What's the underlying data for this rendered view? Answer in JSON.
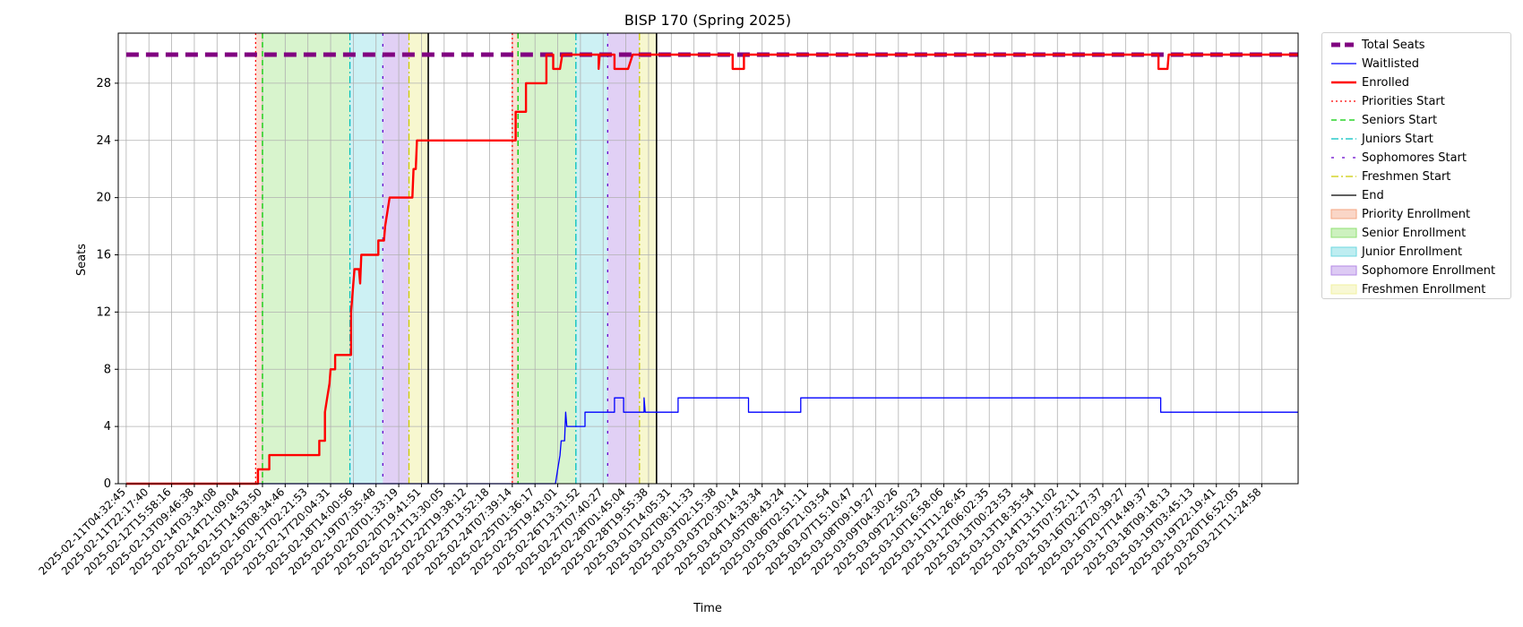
{
  "chart_data": {
    "type": "line",
    "title": "BISP 170 (Spring 2025)",
    "xlabel": "Time",
    "ylabel": "Seats",
    "ylim": [
      0,
      31.5
    ],
    "yticks": [
      0,
      4,
      8,
      12,
      16,
      20,
      24,
      28
    ],
    "grid": true,
    "legend_position": "outside-right",
    "xticks": [
      "2025-02-11T04:32:45",
      "2025-02-11T22:17:40",
      "2025-02-12T15:58:16",
      "2025-02-13T09:46:38",
      "2025-02-14T03:34:08",
      "2025-02-14T21:09:04",
      "2025-02-15T14:53:50",
      "2025-02-16T08:34:46",
      "2025-02-17T02:21:53",
      "2025-02-17T20:04:31",
      "2025-02-18T14:00:56",
      "2025-02-19T07:35:48",
      "2025-02-20T01:33:19",
      "2025-02-20T19:41:51",
      "2025-02-21T13:30:05",
      "2025-02-22T19:38:12",
      "2025-02-23T13:52:18",
      "2025-02-24T07:39:14",
      "2025-02-25T01:36:17",
      "2025-02-25T19:43:01",
      "2025-02-26T13:31:52",
      "2025-02-27T07:40:27",
      "2025-02-28T01:45:04",
      "2025-02-28T19:55:38",
      "2025-03-01T14:05:31",
      "2025-03-02T08:11:33",
      "2025-03-03T02:15:38",
      "2025-03-03T20:30:14",
      "2025-03-04T14:33:34",
      "2025-03-05T08:43:24",
      "2025-03-06T02:51:11",
      "2025-03-06T21:03:54",
      "2025-03-07T15:10:47",
      "2025-03-08T09:19:27",
      "2025-03-09T04:30:26",
      "2025-03-09T22:50:23",
      "2025-03-10T16:58:06",
      "2025-03-11T11:26:45",
      "2025-03-12T06:02:35",
      "2025-03-13T00:23:53",
      "2025-03-13T18:35:54",
      "2025-03-14T13:11:02",
      "2025-03-15T07:52:11",
      "2025-03-16T02:27:37",
      "2025-03-16T20:39:27",
      "2025-03-17T14:49:37",
      "2025-03-18T09:18:13",
      "2025-03-19T03:45:13",
      "2025-03-19T22:19:41",
      "2025-03-20T16:52:05",
      "2025-03-21T11:24:58"
    ],
    "x_range_tick_index": [
      0,
      51.6
    ],
    "total_seats": 30,
    "series": [
      {
        "name": "Total Seats",
        "color": "#800080",
        "points": [
          [
            0,
            30
          ],
          [
            51.6,
            30
          ]
        ]
      },
      {
        "name": "Waitlisted",
        "color": "#0000ff",
        "points": [
          [
            0,
            0
          ],
          [
            13.65,
            0
          ],
          [
            13.65,
            0
          ],
          [
            18.9,
            0
          ],
          [
            18.9,
            0
          ],
          [
            19.0,
            1
          ],
          [
            19.1,
            2
          ],
          [
            19.15,
            3
          ],
          [
            19.3,
            3
          ],
          [
            19.35,
            5
          ],
          [
            19.4,
            4
          ],
          [
            20.2,
            4
          ],
          [
            20.2,
            5
          ],
          [
            21.5,
            5
          ],
          [
            21.5,
            6
          ],
          [
            21.9,
            6
          ],
          [
            21.9,
            5
          ],
          [
            22.8,
            5
          ],
          [
            22.8,
            6
          ],
          [
            22.85,
            5
          ],
          [
            24.3,
            5
          ],
          [
            24.3,
            6
          ],
          [
            27.4,
            6
          ],
          [
            27.4,
            5
          ],
          [
            29.7,
            5
          ],
          [
            29.7,
            6
          ],
          [
            45.55,
            6
          ],
          [
            45.55,
            5
          ],
          [
            51.6,
            5
          ]
        ]
      },
      {
        "name": "Enrolled",
        "color": "#ff0000",
        "points": [
          [
            0,
            0
          ],
          [
            5.8,
            0
          ],
          [
            5.8,
            1
          ],
          [
            6.3,
            1
          ],
          [
            6.3,
            2
          ],
          [
            8.5,
            2
          ],
          [
            8.5,
            3
          ],
          [
            8.75,
            3
          ],
          [
            8.75,
            5
          ],
          [
            8.85,
            6
          ],
          [
            8.95,
            7
          ],
          [
            9.0,
            8
          ],
          [
            9.2,
            8
          ],
          [
            9.2,
            9
          ],
          [
            9.9,
            9
          ],
          [
            9.9,
            12
          ],
          [
            10.0,
            14
          ],
          [
            10.05,
            15
          ],
          [
            10.25,
            15
          ],
          [
            10.3,
            14
          ],
          [
            10.35,
            16
          ],
          [
            11.1,
            16
          ],
          [
            11.1,
            17
          ],
          [
            11.35,
            17
          ],
          [
            11.4,
            18
          ],
          [
            11.5,
            19
          ],
          [
            11.6,
            20
          ],
          [
            12.6,
            20
          ],
          [
            12.65,
            22
          ],
          [
            12.75,
            22
          ],
          [
            12.8,
            24
          ],
          [
            17.15,
            24
          ],
          [
            17.15,
            26
          ],
          [
            17.6,
            26
          ],
          [
            17.6,
            28
          ],
          [
            18.5,
            28
          ],
          [
            18.5,
            30
          ],
          [
            18.8,
            30
          ],
          [
            18.8,
            29
          ],
          [
            19.1,
            29
          ],
          [
            19.2,
            30
          ],
          [
            20.8,
            30
          ],
          [
            20.8,
            29
          ],
          [
            20.85,
            30
          ],
          [
            21.5,
            30
          ],
          [
            21.5,
            29
          ],
          [
            22.1,
            29
          ],
          [
            22.3,
            30
          ],
          [
            26.7,
            30
          ],
          [
            26.7,
            29
          ],
          [
            27.2,
            29
          ],
          [
            27.2,
            30
          ],
          [
            45.45,
            30
          ],
          [
            45.45,
            29
          ],
          [
            45.85,
            29
          ],
          [
            45.9,
            30
          ],
          [
            51.6,
            30
          ]
        ]
      }
    ],
    "markers": [
      {
        "name": "Priorities Start",
        "color": "#ff0000",
        "style": "dotted",
        "x": [
          5.7,
          17.0
        ]
      },
      {
        "name": "Seniors Start",
        "color": "#00cc00",
        "style": "dashed",
        "x": [
          6.0,
          17.25
        ]
      },
      {
        "name": "Juniors Start",
        "color": "#00bfbf",
        "style": "dashdot",
        "x": [
          9.85,
          19.8
        ]
      },
      {
        "name": "Sophomores Start",
        "color": "#6600cc",
        "style": "loosedash",
        "x": [
          11.3,
          21.2
        ]
      },
      {
        "name": "Freshmen Start",
        "color": "#cccc00",
        "style": "dashdot",
        "x": [
          12.45,
          22.6
        ]
      },
      {
        "name": "End",
        "color": "#000000",
        "style": "solid",
        "x": [
          13.3,
          23.35
        ]
      }
    ],
    "regions": [
      {
        "name": "Priority Enrollment",
        "color": "#f4a582",
        "alpha": 0.35,
        "ranges": [
          [
            5.7,
            6.0
          ],
          [
            17.0,
            17.25
          ]
        ]
      },
      {
        "name": "Senior Enrollment",
        "color": "#90e070",
        "alpha": 0.35,
        "ranges": [
          [
            6.0,
            9.85
          ],
          [
            17.25,
            19.8
          ]
        ]
      },
      {
        "name": "Junior Enrollment",
        "color": "#6fd8e0",
        "alpha": 0.35,
        "ranges": [
          [
            9.85,
            11.3
          ],
          [
            19.8,
            21.2
          ]
        ]
      },
      {
        "name": "Sophomore Enrollment",
        "color": "#b48ae6",
        "alpha": 0.4,
        "ranges": [
          [
            11.3,
            12.45
          ],
          [
            21.2,
            22.6
          ]
        ]
      },
      {
        "name": "Freshmen Enrollment",
        "color": "#f0f0a0",
        "alpha": 0.5,
        "ranges": [
          [
            12.45,
            13.3
          ],
          [
            22.6,
            23.35
          ]
        ]
      }
    ]
  },
  "legend": {
    "items": [
      {
        "label": "Total Seats",
        "kind": "line",
        "color": "#800080",
        "style": "thickdash"
      },
      {
        "label": "Waitlisted",
        "kind": "line",
        "color": "#0000ff",
        "style": "solid"
      },
      {
        "label": "Enrolled",
        "kind": "line",
        "color": "#ff0000",
        "style": "thick"
      },
      {
        "label": "Priorities Start",
        "kind": "line",
        "color": "#ff0000",
        "style": "dotted"
      },
      {
        "label": "Seniors Start",
        "kind": "line",
        "color": "#00cc00",
        "style": "dashed"
      },
      {
        "label": "Juniors Start",
        "kind": "line",
        "color": "#00bfbf",
        "style": "dashdot"
      },
      {
        "label": "Sophomores Start",
        "kind": "line",
        "color": "#6600cc",
        "style": "loosedash"
      },
      {
        "label": "Freshmen Start",
        "kind": "line",
        "color": "#cccc00",
        "style": "dashdot"
      },
      {
        "label": "End",
        "kind": "line",
        "color": "#000000",
        "style": "solid"
      },
      {
        "label": "Priority Enrollment",
        "kind": "patch",
        "color": "#f4a582"
      },
      {
        "label": "Senior Enrollment",
        "kind": "patch",
        "color": "#90e070"
      },
      {
        "label": "Junior Enrollment",
        "kind": "patch",
        "color": "#6fd8e0"
      },
      {
        "label": "Sophomore Enrollment",
        "kind": "patch",
        "color": "#b48ae6"
      },
      {
        "label": "Freshmen Enrollment",
        "kind": "patch",
        "color": "#f0f0a0"
      }
    ]
  }
}
